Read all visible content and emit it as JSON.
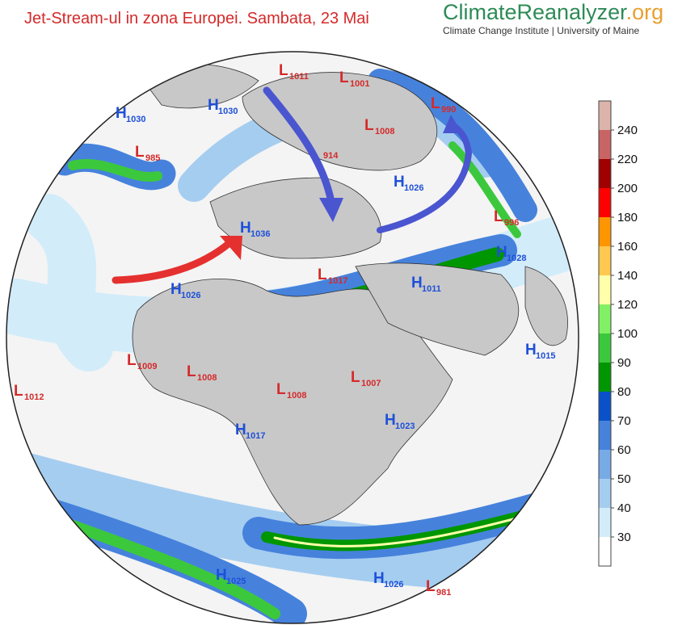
{
  "header": {
    "title": "Jet-Stream-ul in zona Europei. Sambata, 23 Mai",
    "logo_main": "ClimateReanalyzer",
    "logo_suffix": ".org",
    "logo_subtitle": "Climate Change Institute | University of Maine"
  },
  "pressure_systems": [
    {
      "kind": "H",
      "value": "1030"
    },
    {
      "kind": "H",
      "value": "1030"
    },
    {
      "kind": "L",
      "value": "1011"
    },
    {
      "kind": "L",
      "value": "1001"
    },
    {
      "kind": "L",
      "value": "990"
    },
    {
      "kind": "L",
      "value": "985"
    },
    {
      "kind": "L",
      "value": "1008"
    },
    {
      "value": "914"
    },
    {
      "kind": "H",
      "value": "1026"
    },
    {
      "kind": "L",
      "value": "996"
    },
    {
      "kind": "H",
      "value": "1036"
    },
    {
      "kind": "H",
      "value": "1028"
    },
    {
      "kind": "L",
      "value": "1017"
    },
    {
      "kind": "H",
      "value": "1026"
    },
    {
      "kind": "H",
      "value": "1011"
    },
    {
      "kind": "H",
      "value": "1015"
    },
    {
      "kind": "L",
      "value": "1009"
    },
    {
      "kind": "L",
      "value": "1008"
    },
    {
      "kind": "L",
      "value": "1007"
    },
    {
      "kind": "L",
      "value": "1008"
    },
    {
      "kind": "L",
      "value": "1012"
    },
    {
      "kind": "H",
      "value": "1017"
    },
    {
      "kind": "H",
      "value": "1023"
    },
    {
      "kind": "H",
      "value": "1025"
    },
    {
      "kind": "H",
      "value": "1026"
    },
    {
      "kind": "L",
      "value": "981"
    }
  ],
  "colorbar": {
    "ticks": [
      30,
      40,
      50,
      60,
      70,
      80,
      90,
      100,
      120,
      140,
      160,
      180,
      200,
      220,
      240
    ],
    "colors": [
      "#ffffff",
      "#d2ecfa",
      "#a5cdf0",
      "#78aae6",
      "#4682dc",
      "#0a50c8",
      "#009600",
      "#3cc83c",
      "#82f064",
      "#ffffaa",
      "#ffc850",
      "#ff9600",
      "#ff0000",
      "#a00000",
      "#c86464",
      "#dcb4aa"
    ]
  }
}
